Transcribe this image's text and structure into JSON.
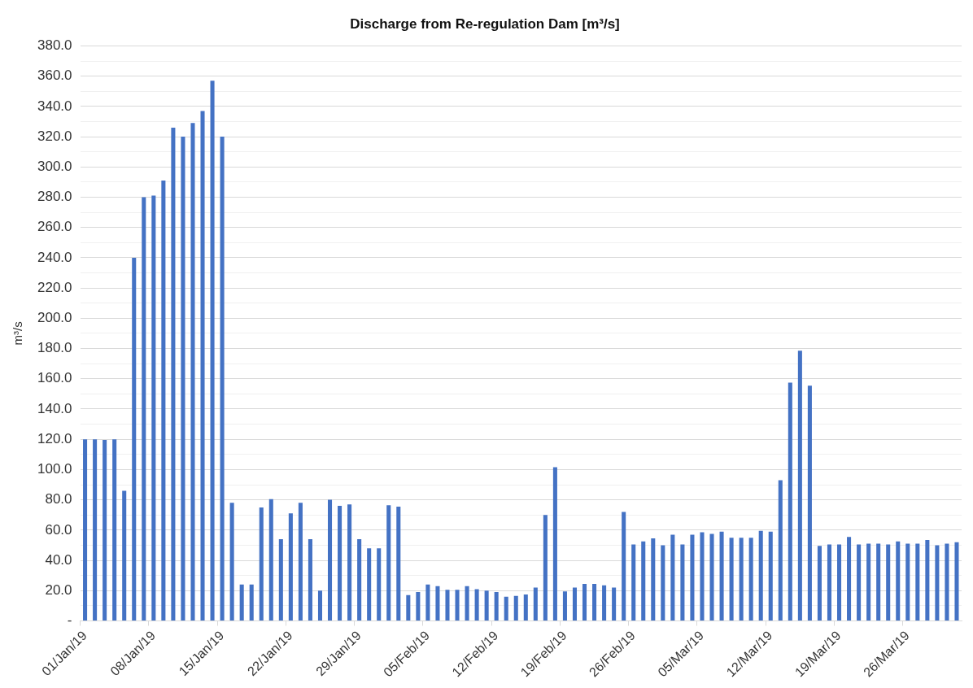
{
  "chart_data": {
    "type": "bar",
    "title": "Discharge from Re-regulation Dam [m³/s]",
    "ylabel": "m³/s",
    "categories": [
      "01/Jan/19",
      null,
      null,
      null,
      null,
      null,
      null,
      "08/Jan/19",
      null,
      null,
      null,
      null,
      null,
      null,
      "15/Jan/19",
      null,
      null,
      null,
      null,
      null,
      null,
      "22/Jan/19",
      null,
      null,
      null,
      null,
      null,
      null,
      "29/Jan/19",
      null,
      null,
      null,
      null,
      null,
      null,
      "05/Feb/19",
      null,
      null,
      null,
      null,
      null,
      null,
      "12/Feb/19",
      null,
      null,
      null,
      null,
      null,
      null,
      "19/Feb/19",
      null,
      null,
      null,
      null,
      null,
      null,
      "26/Feb/19",
      null,
      null,
      null,
      null,
      null,
      null,
      "05/Mar/19",
      null,
      null,
      null,
      null,
      null,
      null,
      "12/Mar/19",
      null,
      null,
      null,
      null,
      null,
      null,
      "19/Mar/19",
      null,
      null,
      null,
      null,
      null,
      null,
      "26/Mar/19",
      null,
      null,
      null,
      null,
      null
    ],
    "values": [
      120,
      120,
      119.5,
      120,
      86,
      240,
      280,
      281,
      291,
      326,
      320,
      329,
      337,
      357,
      320,
      78,
      24,
      24,
      75,
      80.5,
      54,
      71,
      78,
      54,
      20,
      80,
      76,
      77,
      54,
      48,
      48,
      76.5,
      75.5,
      17,
      19,
      24,
      23,
      20.5,
      20.5,
      23,
      21,
      20,
      19,
      16,
      16.5,
      17.5,
      22,
      70,
      101.5,
      19.5,
      22,
      24.5,
      24.5,
      23.5,
      22,
      72,
      50.5,
      52.5,
      54.5,
      50,
      57,
      50.5,
      57,
      58.5,
      57.5,
      59,
      55,
      55,
      55,
      59.5,
      59,
      93,
      157.5,
      178.5,
      155.5,
      49.5,
      50.5,
      50.5,
      55.5,
      50.5,
      51,
      51,
      50.5,
      52.5,
      51,
      51,
      53.5,
      50,
      51,
      52
    ],
    "color": "#4472c4",
    "ylim": [
      0,
      380
    ],
    "yticks": [
      {
        "value": 0,
        "label": "-"
      },
      {
        "value": 10,
        "label": null
      },
      {
        "value": 20,
        "label": "20.0"
      },
      {
        "value": 30,
        "label": null
      },
      {
        "value": 40,
        "label": "40.0"
      },
      {
        "value": 50,
        "label": null
      },
      {
        "value": 60,
        "label": "60.0"
      },
      {
        "value": 70,
        "label": null
      },
      {
        "value": 80,
        "label": "80.0"
      },
      {
        "value": 90,
        "label": null
      },
      {
        "value": 100,
        "label": "100.0"
      },
      {
        "value": 110,
        "label": null
      },
      {
        "value": 120,
        "label": "120.0"
      },
      {
        "value": 130,
        "label": null
      },
      {
        "value": 140,
        "label": "140.0"
      },
      {
        "value": 150,
        "label": null
      },
      {
        "value": 160,
        "label": "160.0"
      },
      {
        "value": 170,
        "label": null
      },
      {
        "value": 180,
        "label": "180.0"
      },
      {
        "value": 190,
        "label": null
      },
      {
        "value": 200,
        "label": "200.0"
      },
      {
        "value": 210,
        "label": null
      },
      {
        "value": 220,
        "label": "220.0"
      },
      {
        "value": 230,
        "label": null
      },
      {
        "value": 240,
        "label": "240.0"
      },
      {
        "value": 250,
        "label": null
      },
      {
        "value": 260,
        "label": "260.0"
      },
      {
        "value": 270,
        "label": null
      },
      {
        "value": 280,
        "label": "280.0"
      },
      {
        "value": 290,
        "label": null
      },
      {
        "value": 300,
        "label": "300.0"
      },
      {
        "value": 310,
        "label": null
      },
      {
        "value": 320,
        "label": "320.0"
      },
      {
        "value": 330,
        "label": null
      },
      {
        "value": 340,
        "label": "340.0"
      },
      {
        "value": 350,
        "label": null
      },
      {
        "value": 360,
        "label": "360.0"
      },
      {
        "value": 370,
        "label": null
      },
      {
        "value": 380,
        "label": "380.0"
      }
    ],
    "grid": "y",
    "legend": false
  }
}
